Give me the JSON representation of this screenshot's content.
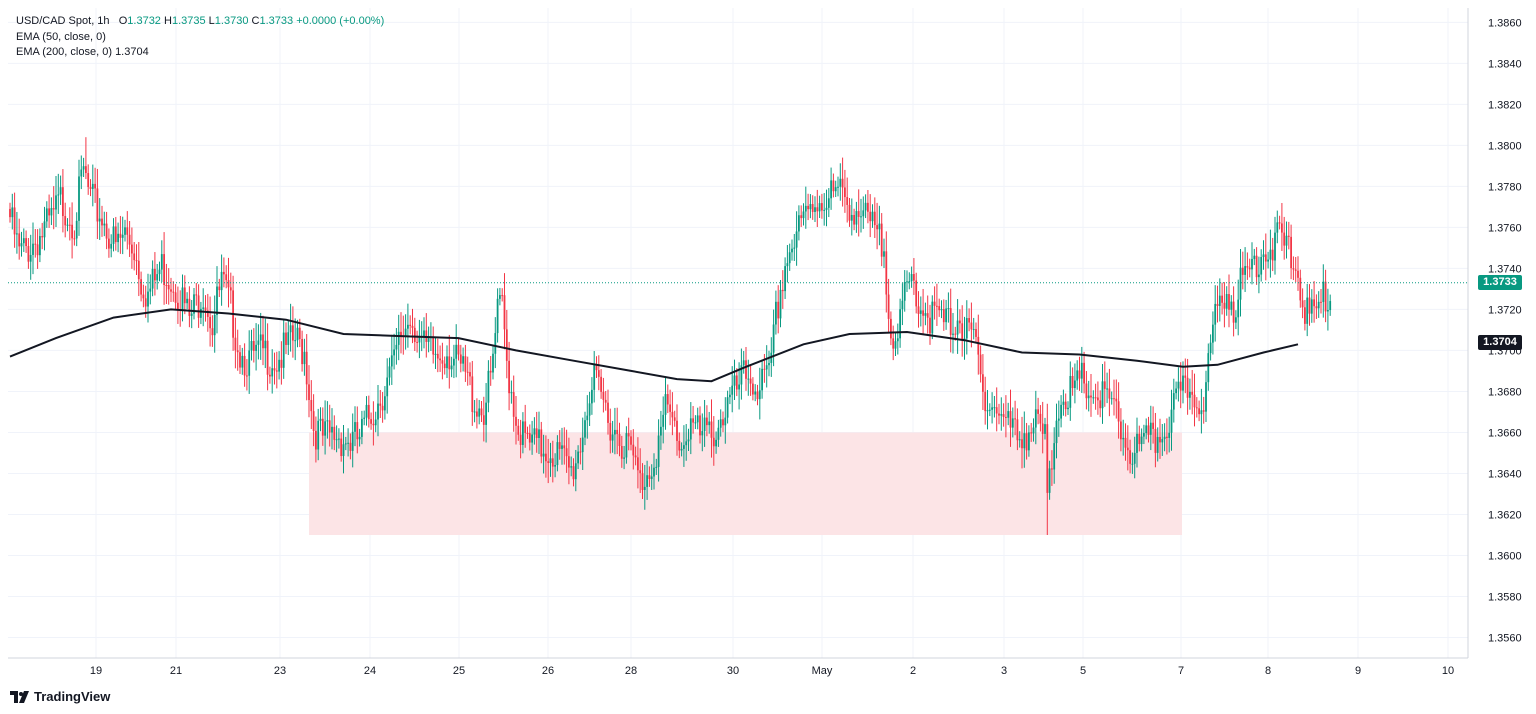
{
  "legend": {
    "symbol": "USD/CAD Spot, 1h",
    "o_label": "O",
    "o_value": "1.3732",
    "h_label": "H",
    "h_value": "1.3735",
    "l_label": "L",
    "l_value": "1.3730",
    "c_label": "C",
    "c_value": "1.3733",
    "change": "+0.0000 (+0.00%)",
    "ema50": "EMA (50, close, 0)",
    "ema200": "EMA (200, close, 0)",
    "ema200_value": "1.3704"
  },
  "brand": {
    "name": "TradingView"
  },
  "colors": {
    "up": "#089981",
    "down": "#F23645",
    "ema200": "#131722",
    "zone": "#FCE4E6",
    "grid": "#F0F3FA",
    "last_price_line": "#089981"
  },
  "price_tags": {
    "last": "1.3733",
    "ema200": "1.3704"
  },
  "chart_data": {
    "type": "candlestick",
    "title": "USD/CAD Spot, 1h",
    "y_ticks": [
      "1.3860",
      "1.3840",
      "1.3820",
      "1.3800",
      "1.3780",
      "1.3760",
      "1.3740",
      "1.3720",
      "1.3700",
      "1.3680",
      "1.3660",
      "1.3640",
      "1.3620",
      "1.3600",
      "1.3580",
      "1.3560"
    ],
    "ylim": [
      1.355,
      1.3867
    ],
    "x_ticks": [
      "19",
      "21",
      "23",
      "24",
      "25",
      "26",
      "28",
      "30",
      "May",
      "2",
      "3",
      "5",
      "7",
      "8",
      "9",
      "10"
    ],
    "grid": true,
    "last_price": 1.3733,
    "zone": {
      "low": 1.361,
      "high": 1.366
    },
    "ema200": [
      [
        0,
        1.3697
      ],
      [
        20,
        1.3706
      ],
      [
        45,
        1.3716
      ],
      [
        70,
        1.372
      ],
      [
        95,
        1.3718
      ],
      [
        120,
        1.3715
      ],
      [
        145,
        1.3708
      ],
      [
        170,
        1.3707
      ],
      [
        195,
        1.3706
      ],
      [
        220,
        1.37
      ],
      [
        245,
        1.3695
      ],
      [
        270,
        1.369
      ],
      [
        290,
        1.3686
      ],
      [
        305,
        1.3685
      ],
      [
        320,
        1.3692
      ],
      [
        345,
        1.3703
      ],
      [
        365,
        1.3708
      ],
      [
        390,
        1.3709
      ],
      [
        415,
        1.3705
      ],
      [
        440,
        1.3699
      ],
      [
        465,
        1.3698
      ],
      [
        490,
        1.3695
      ],
      [
        510,
        1.3692
      ],
      [
        525,
        1.3693
      ],
      [
        545,
        1.3699
      ],
      [
        560,
        1.3703
      ]
    ],
    "anchors": [
      [
        0,
        1.377
      ],
      [
        4,
        1.3752
      ],
      [
        8,
        1.3755
      ],
      [
        14,
        1.3762
      ],
      [
        18,
        1.3768
      ],
      [
        22,
        1.3778
      ],
      [
        28,
        1.3768
      ],
      [
        32,
        1.3792
      ],
      [
        35,
        1.3778
      ],
      [
        40,
        1.377
      ],
      [
        46,
        1.3755
      ],
      [
        50,
        1.3762
      ],
      [
        54,
        1.3755
      ],
      [
        57,
        1.374
      ],
      [
        60,
        1.3732
      ],
      [
        66,
        1.3746
      ],
      [
        70,
        1.374
      ],
      [
        74,
        1.3733
      ],
      [
        78,
        1.372
      ],
      [
        84,
        1.3735
      ],
      [
        88,
        1.3718
      ],
      [
        92,
        1.3738
      ],
      [
        96,
        1.3725
      ],
      [
        100,
        1.3704
      ],
      [
        104,
        1.37
      ],
      [
        110,
        1.3704
      ],
      [
        116,
        1.37
      ],
      [
        120,
        1.3705
      ],
      [
        124,
        1.371
      ],
      [
        128,
        1.3705
      ],
      [
        132,
        1.3668
      ],
      [
        136,
        1.3662
      ],
      [
        142,
        1.3664
      ],
      [
        148,
        1.366
      ],
      [
        152,
        1.3662
      ],
      [
        156,
        1.3672
      ],
      [
        160,
        1.368
      ],
      [
        164,
        1.369
      ],
      [
        167,
        1.3698
      ],
      [
        170,
        1.3712
      ],
      [
        174,
        1.3722
      ],
      [
        177,
        1.3715
      ],
      [
        180,
        1.3705
      ],
      [
        186,
        1.3702
      ],
      [
        190,
        1.3706
      ],
      [
        194,
        1.3698
      ],
      [
        198,
        1.3693
      ],
      [
        202,
        1.368
      ],
      [
        206,
        1.3676
      ],
      [
        209,
        1.369
      ],
      [
        212,
        1.3722
      ],
      [
        214,
        1.3726
      ],
      [
        216,
        1.37
      ],
      [
        220,
        1.3672
      ],
      [
        224,
        1.366
      ],
      [
        230,
        1.3658
      ],
      [
        236,
        1.3656
      ],
      [
        240,
        1.3652
      ],
      [
        244,
        1.3645
      ],
      [
        248,
        1.366
      ],
      [
        251,
        1.368
      ],
      [
        254,
        1.3688
      ],
      [
        258,
        1.3679
      ],
      [
        262,
        1.3668
      ],
      [
        266,
        1.3662
      ],
      [
        270,
        1.3655
      ],
      [
        274,
        1.364
      ],
      [
        278,
        1.3648
      ],
      [
        282,
        1.366
      ],
      [
        285,
        1.3675
      ],
      [
        288,
        1.367
      ],
      [
        292,
        1.3658
      ],
      [
        296,
        1.3672
      ],
      [
        300,
        1.3662
      ],
      [
        306,
        1.3666
      ],
      [
        312,
        1.3678
      ],
      [
        316,
        1.3685
      ],
      [
        320,
        1.3693
      ],
      [
        325,
        1.3688
      ],
      [
        330,
        1.369
      ],
      [
        333,
        1.372
      ],
      [
        335,
        1.3735
      ],
      [
        338,
        1.3752
      ],
      [
        342,
        1.376
      ],
      [
        346,
        1.377
      ],
      [
        350,
        1.3778
      ],
      [
        354,
        1.378
      ],
      [
        360,
        1.3781
      ],
      [
        364,
        1.3778
      ],
      [
        368,
        1.3774
      ],
      [
        372,
        1.3768
      ],
      [
        376,
        1.3762
      ],
      [
        380,
        1.3754
      ],
      [
        383,
        1.3718
      ],
      [
        386,
        1.3708
      ],
      [
        389,
        1.373
      ],
      [
        392,
        1.374
      ],
      [
        396,
        1.3728
      ],
      [
        400,
        1.3722
      ],
      [
        404,
        1.372
      ],
      [
        408,
        1.3717
      ],
      [
        412,
        1.3722
      ],
      [
        416,
        1.3712
      ],
      [
        420,
        1.3708
      ],
      [
        422,
        1.369
      ],
      [
        426,
        1.368
      ],
      [
        430,
        1.3675
      ],
      [
        434,
        1.3668
      ],
      [
        438,
        1.3664
      ],
      [
        442,
        1.3666
      ],
      [
        446,
        1.3668
      ],
      [
        450,
        1.3662
      ],
      [
        451,
        1.363
      ],
      [
        453,
        1.365
      ],
      [
        455,
        1.3676
      ],
      [
        458,
        1.3686
      ],
      [
        462,
        1.3682
      ],
      [
        466,
        1.369
      ],
      [
        470,
        1.3685
      ],
      [
        474,
        1.3682
      ],
      [
        478,
        1.3679
      ],
      [
        482,
        1.367
      ],
      [
        485,
        1.366
      ],
      [
        488,
        1.3655
      ],
      [
        492,
        1.3658
      ],
      [
        496,
        1.366
      ],
      [
        500,
        1.3664
      ],
      [
        504,
        1.3672
      ],
      [
        508,
        1.368
      ],
      [
        512,
        1.3687
      ],
      [
        516,
        1.3682
      ],
      [
        520,
        1.3685
      ],
      [
        522,
        1.3705
      ],
      [
        524,
        1.372
      ],
      [
        528,
        1.3735
      ],
      [
        532,
        1.3728
      ],
      [
        536,
        1.3738
      ],
      [
        540,
        1.3746
      ],
      [
        544,
        1.3754
      ],
      [
        548,
        1.3756
      ],
      [
        552,
        1.3758
      ],
      [
        556,
        1.3754
      ],
      [
        559,
        1.3745
      ],
      [
        562,
        1.3732
      ],
      [
        564,
        1.3722
      ],
      [
        566,
        1.372
      ],
      [
        570,
        1.3728
      ],
      [
        574,
        1.3733
      ]
    ],
    "ohlc_last": {
      "open": 1.3732,
      "high": 1.3735,
      "low": 1.373,
      "close": 1.3733
    }
  }
}
